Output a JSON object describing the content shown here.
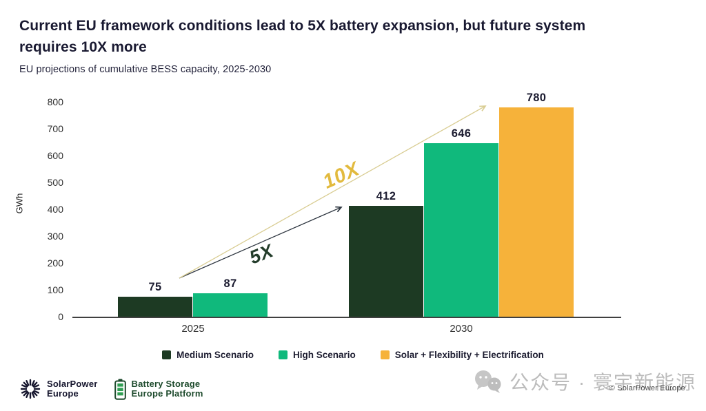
{
  "header": {
    "title_line1": "Current EU framework conditions lead to 5X battery expansion, but future system",
    "title_line2": "requires 10X more",
    "subtitle": "EU projections of cumulative BESS capacity, 2025-2030"
  },
  "chart_data": {
    "type": "bar",
    "title": "EU projections of cumulative BESS capacity, 2025-2030",
    "xlabel": "",
    "ylabel": "GWh",
    "ylim": [
      0,
      800
    ],
    "yticks": [
      0,
      100,
      200,
      300,
      400,
      500,
      600,
      700,
      800
    ],
    "grid": false,
    "legend_position": "bottom",
    "categories": [
      "2025",
      "2030"
    ],
    "series": [
      {
        "name": "Medium Scenario",
        "color": "#1d3a23",
        "values": [
          75,
          412
        ]
      },
      {
        "name": "High Scenario",
        "color": "#10b97c",
        "values": [
          87,
          646
        ]
      },
      {
        "name": "Solar + Flexibility + Electrification",
        "color": "#f6b23a",
        "values": [
          null,
          780
        ]
      }
    ],
    "annotations": [
      {
        "label": "5X",
        "color": "#243d2b",
        "meaning": "growth multiple under current framework (medium scenario)"
      },
      {
        "label": "10X",
        "color": "#e2ba3e",
        "meaning": "growth multiple required by future system"
      }
    ]
  },
  "footer": {
    "logo_solarpower": {
      "line1": "SolarPower",
      "line2": "Europe"
    },
    "logo_battery": {
      "line1": "Battery Storage",
      "line2": "Europe Platform"
    },
    "watermark_text": "公众号 · 寰宇新能源",
    "copyright": "© SolarPower Europe"
  },
  "colors": {
    "title": "#191931",
    "medium_scenario": "#1d3a23",
    "high_scenario": "#10b97c",
    "solar_flex_elec": "#f6b23a",
    "arrow_dark": "#2e3640",
    "arrow_gold": "#d9cd93",
    "watermark_gray": "#bcbcbc"
  }
}
